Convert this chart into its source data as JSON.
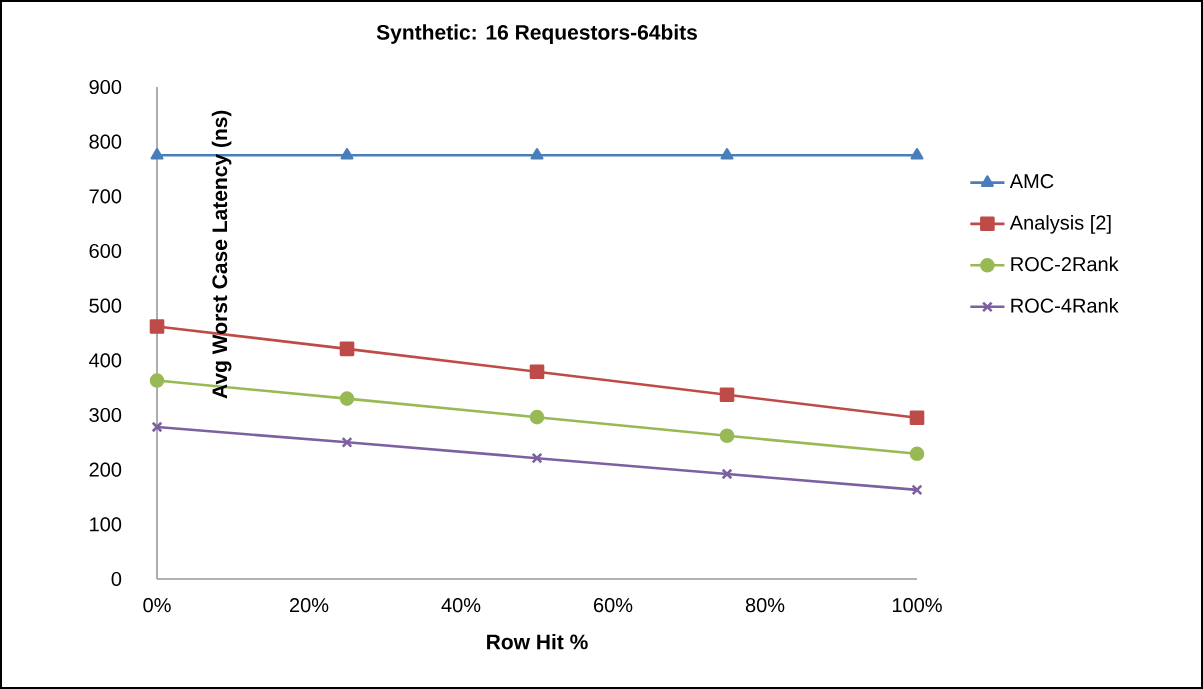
{
  "chart_data": {
    "type": "line",
    "title": "Synthetic: 16 Requestors-64bits",
    "xlabel": "Row Hit %",
    "ylabel": "Avg Worst Case Latency (ns)",
    "x": [
      0,
      25,
      50,
      75,
      100
    ],
    "series": [
      {
        "name": "AMC",
        "color": "#4a7ebb",
        "marker": "triangle",
        "values": [
          775,
          775,
          775,
          775,
          775
        ]
      },
      {
        "name": "Analysis [2]",
        "color": "#be4b48",
        "marker": "square",
        "values": [
          462,
          421,
          379,
          337,
          295
        ]
      },
      {
        "name": "ROC-2Rank",
        "color": "#98b954",
        "marker": "circle",
        "values": [
          363,
          330,
          296,
          262,
          229
        ]
      },
      {
        "name": "ROC-4Rank",
        "color": "#7d60a0",
        "marker": "cross",
        "values": [
          278,
          250,
          221,
          192,
          163
        ]
      }
    ],
    "xlim": [
      0,
      100
    ],
    "ylim": [
      0,
      900
    ],
    "xticks": [
      {
        "value": 0,
        "label": "0%"
      },
      {
        "value": 20,
        "label": "20%"
      },
      {
        "value": 40,
        "label": "40%"
      },
      {
        "value": 60,
        "label": "60%"
      },
      {
        "value": 80,
        "label": "80%"
      },
      {
        "value": 100,
        "label": "100%"
      }
    ],
    "yticks": [
      0,
      100,
      200,
      300,
      400,
      500,
      600,
      700,
      800,
      900
    ],
    "grid": false,
    "legend": "right",
    "line_style": "solid"
  }
}
